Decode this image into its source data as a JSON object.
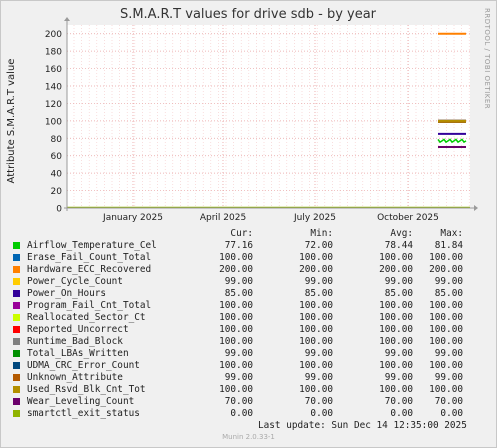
{
  "chart_data": {
    "type": "line",
    "title": "S.M.A.R.T values for drive sdb - by year",
    "ylabel": "Attribute S.M.A.R.T value",
    "ylim": [
      0,
      210
    ],
    "yticks": [
      0,
      20,
      40,
      60,
      80,
      100,
      120,
      140,
      160,
      180,
      200
    ],
    "xticks": [
      "January 2025",
      "April 2025",
      "July 2025",
      "October 2025"
    ],
    "grid": true,
    "side_label": "RRDTOOL / TOBI OETIKER",
    "series": [
      {
        "name": "Airflow_Temperature_Cel",
        "color": "#00cc00",
        "cur": "77.16",
        "min": "72.00",
        "avg": "78.44",
        "max": "81.84",
        "level": 77
      },
      {
        "name": "Erase_Fail_Count_Total",
        "color": "#0066b3",
        "cur": "100.00",
        "min": "100.00",
        "avg": "100.00",
        "max": "100.00",
        "level": 100
      },
      {
        "name": "Hardware_ECC_Recovered",
        "color": "#ff8000",
        "cur": "200.00",
        "min": "200.00",
        "avg": "200.00",
        "max": "200.00",
        "level": 200
      },
      {
        "name": "Power_Cycle_Count",
        "color": "#ffcc00",
        "cur": "99.00",
        "min": "99.00",
        "avg": "99.00",
        "max": "99.00",
        "level": 99
      },
      {
        "name": "Power_On_Hours",
        "color": "#330099",
        "cur": "85.00",
        "min": "85.00",
        "avg": "85.00",
        "max": "85.00",
        "level": 85
      },
      {
        "name": "Program_Fail_Cnt_Total",
        "color": "#990099",
        "cur": "100.00",
        "min": "100.00",
        "avg": "100.00",
        "max": "100.00",
        "level": 100
      },
      {
        "name": "Reallocated_Sector_Ct",
        "color": "#ccff00",
        "cur": "100.00",
        "min": "100.00",
        "avg": "100.00",
        "max": "100.00",
        "level": 100
      },
      {
        "name": "Reported_Uncorrect",
        "color": "#ff0000",
        "cur": "100.00",
        "min": "100.00",
        "avg": "100.00",
        "max": "100.00",
        "level": 100
      },
      {
        "name": "Runtime_Bad_Block",
        "color": "#808080",
        "cur": "100.00",
        "min": "100.00",
        "avg": "100.00",
        "max": "100.00",
        "level": 100
      },
      {
        "name": "Total_LBAs_Written",
        "color": "#008f00",
        "cur": "99.00",
        "min": "99.00",
        "avg": "99.00",
        "max": "99.00",
        "level": 99
      },
      {
        "name": "UDMA_CRC_Error_Count",
        "color": "#00487d",
        "cur": "100.00",
        "min": "100.00",
        "avg": "100.00",
        "max": "100.00",
        "level": 100
      },
      {
        "name": "Unknown_Attribute",
        "color": "#b35a00",
        "cur": "99.00",
        "min": "99.00",
        "avg": "99.00",
        "max": "99.00",
        "level": 99
      },
      {
        "name": "Used_Rsvd_Blk_Cnt_Tot",
        "color": "#b38f00",
        "cur": "100.00",
        "min": "100.00",
        "avg": "100.00",
        "max": "100.00",
        "level": 100
      },
      {
        "name": "Wear_Leveling_Count",
        "color": "#6b006b",
        "cur": "70.00",
        "min": "70.00",
        "avg": "70.00",
        "max": "70.00",
        "level": 70
      },
      {
        "name": "smartctl_exit_status",
        "color": "#8fb300",
        "cur": "0.00",
        "min": "0.00",
        "avg": "0.00",
        "max": "0.00",
        "level": 0
      }
    ]
  },
  "legend_headers": {
    "cur": "Cur:",
    "min": "Min:",
    "avg": "Avg:",
    "max": "Max:"
  },
  "last_update": "Last update:  Sun Dec 14 12:35:00 2025",
  "footer": "Munin 2.0.33-1"
}
